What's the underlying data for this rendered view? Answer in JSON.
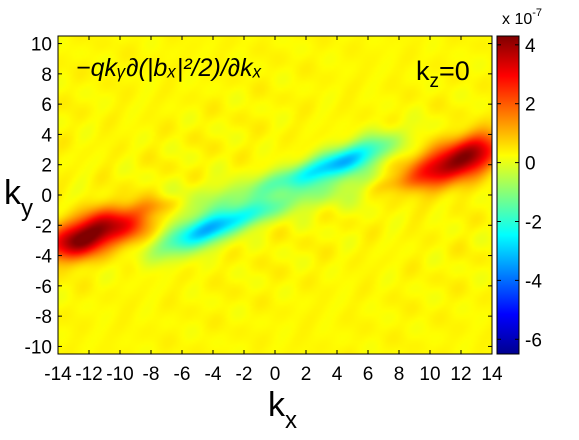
{
  "chart_data": {
    "type": "heatmap",
    "title": "",
    "xlabel": "k",
    "xlabel_sub": "x",
    "ylabel": "k",
    "ylabel_sub": "y",
    "xlim": [
      -14,
      14
    ],
    "ylim": [
      -10.5,
      10.5
    ],
    "x_ticks": [
      -14,
      -12,
      -10,
      -8,
      -6,
      -4,
      -2,
      0,
      2,
      4,
      6,
      8,
      10,
      12,
      14
    ],
    "y_ticks": [
      -10,
      -8,
      -6,
      -4,
      -2,
      0,
      2,
      4,
      6,
      8,
      10
    ],
    "grid": false,
    "colormap": "jet",
    "colorbar": {
      "ticks": [
        -6,
        -4,
        -2,
        0,
        2,
        4
      ],
      "clim": [
        -6.5,
        4.3
      ],
      "exponent_label": "x 10",
      "exponent_power": "-7"
    },
    "annotation_formula": "−qkᵧ∂(|bₓ|²/2)/∂kₓ",
    "annotation_kz": {
      "base": "k",
      "sub": "z",
      "value": "=0"
    },
    "background_value": 0.3,
    "features": [
      {
        "x": 11.3,
        "y": 1.9,
        "sx": 2.3,
        "sy": 0.85,
        "angle": 15,
        "amp": 4.0
      },
      {
        "x": 12.8,
        "y": 3.2,
        "sx": 1.2,
        "sy": 0.7,
        "angle": 20,
        "amp": 1.6
      },
      {
        "x": -11.2,
        "y": -2.2,
        "sx": 2.4,
        "sy": 0.9,
        "angle": 15,
        "amp": 4.1
      },
      {
        "x": -13.0,
        "y": -3.4,
        "sx": 1.2,
        "sy": 0.7,
        "angle": 20,
        "amp": 1.6
      },
      {
        "x": 4.8,
        "y": 2.4,
        "sx": 2.1,
        "sy": 0.65,
        "angle": 22,
        "amp": -2.9
      },
      {
        "x": 1.5,
        "y": 1.3,
        "sx": 2.3,
        "sy": 0.5,
        "angle": 18,
        "amp": -1.3
      },
      {
        "x": -4.8,
        "y": -2.5,
        "sx": 2.1,
        "sy": 0.7,
        "angle": 22,
        "amp": -2.9
      },
      {
        "x": -1.7,
        "y": -1.4,
        "sx": 2.3,
        "sy": 0.5,
        "angle": 18,
        "amp": -1.3
      },
      {
        "x": 0,
        "y": 0,
        "sx": 13.0,
        "sy": 0.9,
        "angle": 8,
        "amp": -0.9
      },
      {
        "x": 7.5,
        "y": 0.7,
        "sx": 1.2,
        "sy": 0.4,
        "angle": 10,
        "amp": 0.6
      },
      {
        "x": -7.5,
        "y": -0.7,
        "sx": 1.2,
        "sy": 0.4,
        "angle": 10,
        "amp": 0.6
      }
    ]
  }
}
